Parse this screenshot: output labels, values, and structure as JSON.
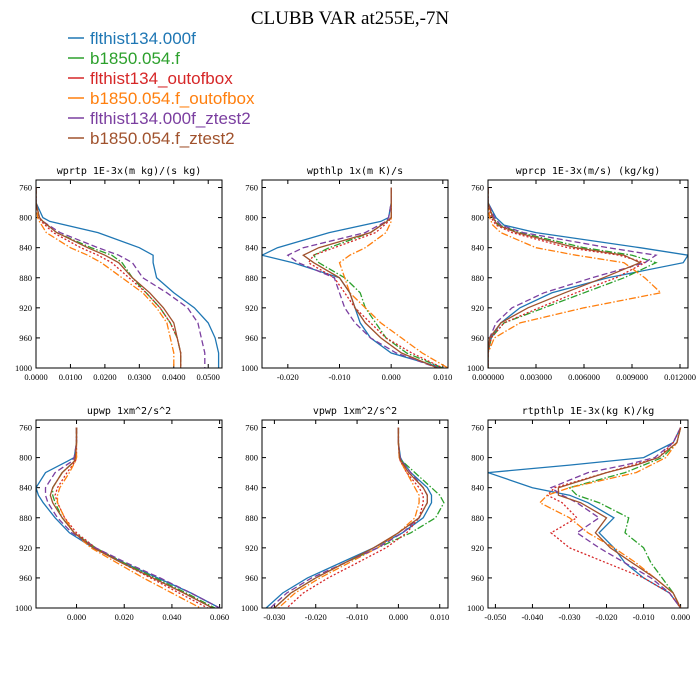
{
  "figure_title": "CLUBB VAR at255E,-7N",
  "series_styles": [
    {
      "name": "flthist134.000f",
      "color": "#1f77b4",
      "dash": ""
    },
    {
      "name": "b1850.054.f",
      "color": "#2ca02c",
      "dash": "7,2,1.5,2"
    },
    {
      "name": "flthist134_outofbox",
      "color": "#d62728",
      "dash": "2,2"
    },
    {
      "name": "b1850.054.f_outofbox",
      "color": "#ff7f0e",
      "dash": "7,2,1.5,2"
    },
    {
      "name": "flthist134.000f_ztest2",
      "color": "#7b3fa0",
      "dash": "6,3"
    },
    {
      "name": "b1850.054.f_ztest2",
      "color": "#a0522d",
      "dash": ""
    }
  ],
  "chart_data": [
    {
      "type": "line",
      "title": "wprtp  1E-3x(m kg)/(s kg)",
      "xlim": [
        0,
        0.054
      ],
      "ylim": [
        1000,
        750
      ],
      "xticks": [
        0,
        0.01,
        0.02,
        0.03,
        0.04,
        0.05
      ],
      "xtick_labels": [
        "0.0000",
        "0.0100",
        "0.0200",
        "0.0300",
        "0.0400",
        "0.0500"
      ],
      "yticks": [
        760,
        800,
        840,
        880,
        920,
        960,
        1000
      ],
      "y": [
        760,
        780,
        800,
        805,
        820,
        840,
        850,
        860,
        880,
        900,
        920,
        940,
        960,
        980,
        1000
      ],
      "series": [
        {
          "name": "flthist134.000f",
          "values": [
            0,
            0,
            0.002,
            0.004,
            0.018,
            0.03,
            0.034,
            0.034,
            0.035,
            0.04,
            0.046,
            0.05,
            0.052,
            0.053,
            0.053
          ]
        },
        {
          "name": "b1850.054.f",
          "values": [
            0,
            0,
            0.001,
            0.002,
            0.006,
            0.016,
            0.022,
            0.025,
            0.028,
            0.032,
            0.036,
            0.039,
            0.041,
            0.042,
            0.042
          ]
        },
        {
          "name": "flthist134_outofbox",
          "values": [
            0,
            0,
            0.001,
            0.0015,
            0.005,
            0.013,
            0.018,
            0.022,
            0.027,
            0.032,
            0.036,
            0.039,
            0.041,
            0.042,
            0.042
          ]
        },
        {
          "name": "b1850.054.f_outofbox",
          "values": [
            0,
            0,
            0.0005,
            0.001,
            0.003,
            0.01,
            0.015,
            0.019,
            0.025,
            0.031,
            0.035,
            0.038,
            0.039,
            0.04,
            0.04
          ]
        },
        {
          "name": "flthist134.000f_ztest2",
          "values": [
            0,
            0,
            0.001,
            0.002,
            0.007,
            0.018,
            0.024,
            0.028,
            0.031,
            0.038,
            0.044,
            0.047,
            0.048,
            0.049,
            0.049
          ]
        },
        {
          "name": "b1850.054.f_ztest2",
          "values": [
            0,
            0,
            0.001,
            0.002,
            0.006,
            0.015,
            0.02,
            0.024,
            0.028,
            0.033,
            0.037,
            0.04,
            0.041,
            0.042,
            0.042
          ]
        }
      ]
    },
    {
      "type": "line",
      "title": "wpthlp  1x(m K)/s",
      "xlim": [
        -0.025,
        0.011
      ],
      "ylim": [
        1000,
        750
      ],
      "xticks": [
        -0.02,
        -0.01,
        0,
        0.01
      ],
      "xtick_labels": [
        "-0.020",
        "-0.010",
        "0.000",
        "0.010"
      ],
      "yticks": [
        760,
        800,
        840,
        880,
        920,
        960,
        1000
      ],
      "y": [
        760,
        780,
        800,
        805,
        820,
        840,
        850,
        860,
        880,
        900,
        920,
        940,
        960,
        980,
        1000
      ],
      "series": [
        {
          "name": "flthist134.000f",
          "values": [
            0,
            0,
            -0.0005,
            -0.002,
            -0.012,
            -0.022,
            -0.025,
            -0.019,
            -0.01,
            -0.008,
            -0.007,
            -0.006,
            -0.004,
            0,
            0.01
          ]
        },
        {
          "name": "b1850.054.f",
          "values": [
            0,
            0,
            0,
            -0.001,
            -0.004,
            -0.012,
            -0.015,
            -0.014,
            -0.009,
            -0.006,
            -0.005,
            -0.003,
            -0.001,
            0.003,
            0.01
          ]
        },
        {
          "name": "flthist134_outofbox",
          "values": [
            0,
            0,
            0,
            -0.0005,
            -0.003,
            -0.011,
            -0.015,
            -0.016,
            -0.011,
            -0.009,
            -0.007,
            -0.004,
            -0.001,
            0.004,
            0.01
          ]
        },
        {
          "name": "b1850.054.f_outofbox",
          "values": [
            0,
            0,
            0,
            0,
            -0.001,
            -0.005,
            -0.008,
            -0.01,
            -0.009,
            -0.008,
            -0.005,
            -0.002,
            0.002,
            0.006,
            0.011
          ]
        },
        {
          "name": "flthist134.000f_ztest2",
          "values": [
            0,
            0,
            -0.0005,
            -0.001,
            -0.005,
            -0.017,
            -0.02,
            -0.018,
            -0.011,
            -0.01,
            -0.009,
            -0.007,
            -0.004,
            0.001,
            0.009
          ]
        },
        {
          "name": "b1850.054.f_ztest2",
          "values": [
            0,
            0,
            0,
            -0.0008,
            -0.004,
            -0.014,
            -0.017,
            -0.015,
            -0.01,
            -0.008,
            -0.007,
            -0.005,
            -0.002,
            0.002,
            0.009
          ]
        }
      ]
    },
    {
      "type": "line",
      "title": "wprcp  1E-3x(m/s) (kg/kg)",
      "xlim": [
        0,
        0.0125
      ],
      "ylim": [
        1000,
        750
      ],
      "xticks": [
        0,
        0.003,
        0.006,
        0.009,
        0.012
      ],
      "xtick_labels": [
        "0.000000",
        "0.003000",
        "0.006000",
        "0.009000",
        "0.012000"
      ],
      "yticks": [
        760,
        800,
        840,
        880,
        920,
        960,
        1000
      ],
      "y": [
        760,
        780,
        800,
        810,
        820,
        840,
        850,
        860,
        880,
        900,
        920,
        940,
        960,
        980,
        1000
      ],
      "series": [
        {
          "name": "flthist134.000f",
          "values": [
            0,
            0,
            0.0005,
            0.001,
            0.003,
            0.0095,
            0.0125,
            0.0122,
            0.0075,
            0.004,
            0.002,
            0.0008,
            0.0002,
            0,
            0
          ]
        },
        {
          "name": "b1850.054.f",
          "values": [
            0,
            0,
            0.0003,
            0.0007,
            0.002,
            0.006,
            0.009,
            0.0105,
            0.0085,
            0.006,
            0.0035,
            0.001,
            0.0002,
            0,
            0
          ]
        },
        {
          "name": "flthist134_outofbox",
          "values": [
            0,
            0,
            0.0002,
            0.0005,
            0.0015,
            0.005,
            0.0082,
            0.0098,
            0.008,
            0.0055,
            0.0032,
            0.001,
            0.0002,
            0,
            0
          ]
        },
        {
          "name": "b1850.054.f_outofbox",
          "values": [
            0,
            0,
            0.0001,
            0.0003,
            0.0008,
            0.003,
            0.0055,
            0.0085,
            0.0098,
            0.0108,
            0.006,
            0.002,
            0.0004,
            0,
            0
          ]
        },
        {
          "name": "flthist134.000f_ztest2",
          "values": [
            0,
            0,
            0.0004,
            0.0008,
            0.0022,
            0.0075,
            0.0105,
            0.0098,
            0.0065,
            0.0035,
            0.0015,
            0.0005,
            0.0001,
            0,
            0
          ]
        },
        {
          "name": "b1850.054.f_ztest2",
          "values": [
            0,
            0,
            0.0003,
            0.0006,
            0.0018,
            0.0055,
            0.0085,
            0.0095,
            0.0072,
            0.0048,
            0.0025,
            0.0008,
            0.0001,
            0,
            0
          ]
        }
      ]
    },
    {
      "type": "line",
      "title": "upwp  1xm^2/s^2",
      "xlim": [
        -0.017,
        0.061
      ],
      "ylim": [
        1000,
        750
      ],
      "xticks": [
        0,
        0.02,
        0.04,
        0.06
      ],
      "xtick_labels": [
        "0.000",
        "0.020",
        "0.040",
        "0.060"
      ],
      "yticks": [
        760,
        800,
        840,
        880,
        920,
        960,
        1000
      ],
      "y": [
        760,
        780,
        800,
        805,
        820,
        840,
        850,
        860,
        880,
        900,
        920,
        940,
        960,
        980,
        1000
      ],
      "series": [
        {
          "name": "flthist134.000f",
          "values": [
            0,
            0,
            -0.001,
            -0.004,
            -0.013,
            -0.017,
            -0.016,
            -0.014,
            -0.009,
            -0.003,
            0.007,
            0.02,
            0.034,
            0.048,
            0.06
          ]
        },
        {
          "name": "b1850.054.f",
          "values": [
            0,
            0,
            -0.0005,
            -0.001,
            -0.006,
            -0.01,
            -0.01,
            -0.009,
            -0.006,
            -0.001,
            0.008,
            0.02,
            0.033,
            0.046,
            0.058
          ]
        },
        {
          "name": "flthist134_outofbox",
          "values": [
            0,
            0,
            0,
            -0.0005,
            -0.004,
            -0.008,
            -0.009,
            -0.008,
            -0.005,
            0,
            0.008,
            0.019,
            0.031,
            0.043,
            0.055
          ]
        },
        {
          "name": "b1850.054.f_outofbox",
          "values": [
            0,
            0,
            0,
            -0.0005,
            -0.003,
            -0.007,
            -0.008,
            -0.008,
            -0.005,
            -0.001,
            0.006,
            0.017,
            0.028,
            0.04,
            0.052
          ]
        },
        {
          "name": "flthist134.000f_ztest2",
          "values": [
            0,
            0,
            -0.001,
            -0.002,
            -0.009,
            -0.013,
            -0.013,
            -0.012,
            -0.008,
            -0.002,
            0.008,
            0.021,
            0.035,
            0.048,
            0.06
          ]
        },
        {
          "name": "b1850.054.f_ztest2",
          "values": [
            0,
            0,
            -0.0005,
            -0.001,
            -0.006,
            -0.01,
            -0.011,
            -0.01,
            -0.006,
            -0.001,
            0.007,
            0.019,
            0.032,
            0.045,
            0.057
          ]
        }
      ]
    },
    {
      "type": "line",
      "title": "vpwp  1xm^2/s^2",
      "xlim": [
        -0.033,
        0.012
      ],
      "ylim": [
        1000,
        750
      ],
      "xticks": [
        -0.03,
        -0.02,
        -0.01,
        0,
        0.01
      ],
      "xtick_labels": [
        "-0.030",
        "-0.020",
        "-0.010",
        "0.000",
        "0.010"
      ],
      "yticks": [
        760,
        800,
        840,
        880,
        920,
        960,
        1000
      ],
      "y": [
        760,
        780,
        800,
        805,
        820,
        840,
        850,
        860,
        880,
        900,
        920,
        940,
        960,
        980,
        1000
      ],
      "series": [
        {
          "name": "flthist134.000f",
          "values": [
            0,
            0,
            0.0005,
            0.001,
            0.003,
            0.007,
            0.008,
            0.008,
            0.006,
            0.001,
            -0.006,
            -0.014,
            -0.022,
            -0.028,
            -0.032
          ]
        },
        {
          "name": "b1850.054.f",
          "values": [
            0,
            0,
            0.0003,
            0.001,
            0.004,
            0.008,
            0.01,
            0.011,
            0.009,
            0.003,
            -0.005,
            -0.013,
            -0.02,
            -0.026,
            -0.03
          ]
        },
        {
          "name": "flthist134_outofbox",
          "values": [
            0,
            0,
            0.0002,
            0.0005,
            0.002,
            0.005,
            0.006,
            0.006,
            0.005,
            0.002,
            -0.003,
            -0.01,
            -0.017,
            -0.023,
            -0.027
          ]
        },
        {
          "name": "b1850.054.f_outofbox",
          "values": [
            0,
            0,
            0.0002,
            0.0005,
            0.002,
            0.004,
            0.005,
            0.005,
            0.004,
            0,
            -0.005,
            -0.012,
            -0.019,
            -0.025,
            -0.029
          ]
        },
        {
          "name": "flthist134.000f_ztest2",
          "values": [
            0,
            0,
            0.0004,
            0.0008,
            0.003,
            0.006,
            0.007,
            0.007,
            0.005,
            0.001,
            -0.005,
            -0.013,
            -0.021,
            -0.027,
            -0.031
          ]
        },
        {
          "name": "b1850.054.f_ztest2",
          "values": [
            0,
            0,
            0.0003,
            0.0007,
            0.0025,
            0.006,
            0.007,
            0.007,
            0.005,
            0,
            -0.006,
            -0.013,
            -0.02,
            -0.026,
            -0.03
          ]
        }
      ]
    },
    {
      "type": "line",
      "title": "rtpthlp  1E-3x(kg K)/kg",
      "xlim": [
        -0.052,
        0.002
      ],
      "ylim": [
        1000,
        750
      ],
      "xticks": [
        -0.05,
        -0.04,
        -0.03,
        -0.02,
        -0.01,
        0
      ],
      "xtick_labels": [
        "-0.050",
        "-0.040",
        "-0.030",
        "-0.020",
        "-0.010",
        "0.000"
      ],
      "yticks": [
        760,
        800,
        840,
        880,
        920,
        960,
        1000
      ],
      "y": [
        760,
        780,
        800,
        810,
        820,
        840,
        850,
        860,
        880,
        900,
        920,
        940,
        960,
        980,
        1000
      ],
      "series": [
        {
          "name": "flthist134.000f",
          "values": [
            0,
            -0.002,
            -0.01,
            -0.03,
            -0.052,
            -0.04,
            -0.03,
            -0.025,
            -0.018,
            -0.022,
            -0.018,
            -0.015,
            -0.01,
            -0.003,
            0
          ]
        },
        {
          "name": "b1850.054.f",
          "values": [
            0,
            -0.001,
            -0.005,
            -0.01,
            -0.015,
            -0.03,
            -0.028,
            -0.022,
            -0.014,
            -0.015,
            -0.01,
            -0.008,
            -0.005,
            -0.002,
            0
          ]
        },
        {
          "name": "flthist134_outofbox",
          "values": [
            0,
            -0.002,
            -0.006,
            -0.013,
            -0.02,
            -0.034,
            -0.036,
            -0.032,
            -0.028,
            -0.035,
            -0.03,
            -0.02,
            -0.01,
            -0.003,
            0
          ]
        },
        {
          "name": "b1850.054.f_outofbox",
          "values": [
            0,
            -0.001,
            -0.004,
            -0.008,
            -0.012,
            -0.03,
            -0.036,
            -0.038,
            -0.03,
            -0.025,
            -0.018,
            -0.012,
            -0.007,
            -0.002,
            0
          ]
        },
        {
          "name": "flthist134.000f_ztest2",
          "values": [
            0,
            -0.002,
            -0.007,
            -0.015,
            -0.025,
            -0.035,
            -0.032,
            -0.028,
            -0.022,
            -0.028,
            -0.022,
            -0.015,
            -0.008,
            -0.003,
            0
          ]
        },
        {
          "name": "b1850.054.f_ztest2",
          "values": [
            0,
            -0.001,
            -0.006,
            -0.012,
            -0.02,
            -0.033,
            -0.033,
            -0.027,
            -0.02,
            -0.023,
            -0.019,
            -0.013,
            -0.007,
            -0.002,
            0
          ]
        }
      ]
    }
  ]
}
